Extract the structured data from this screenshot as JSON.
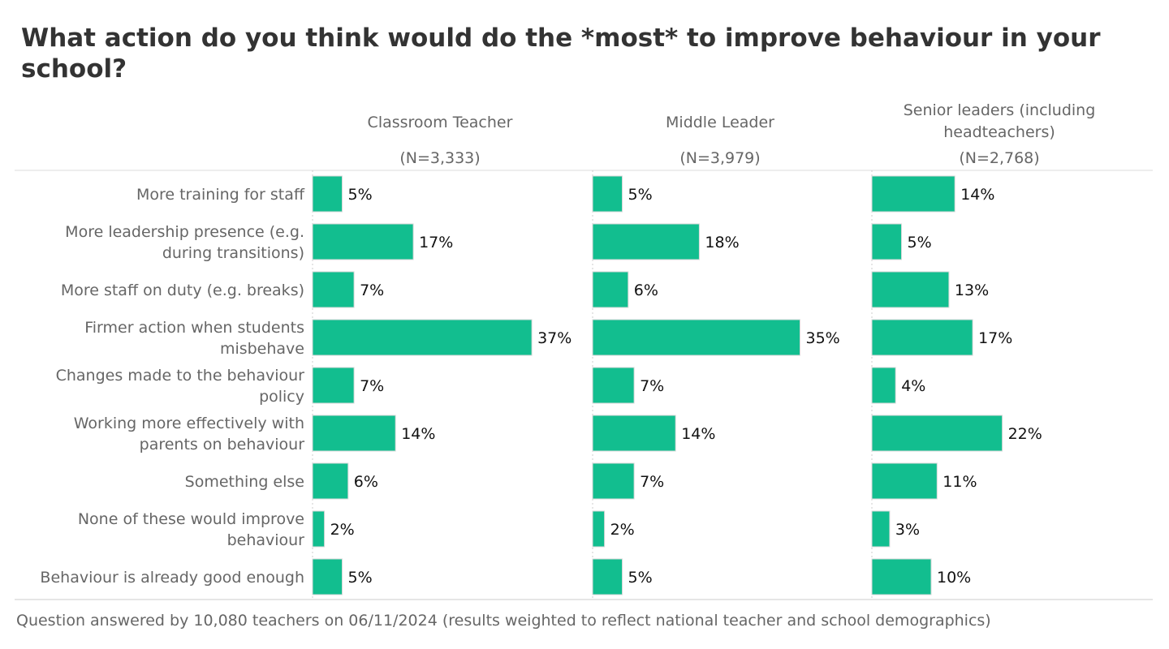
{
  "chart_data": {
    "type": "bar",
    "orientation": "horizontal",
    "title": "What action do you think would do the *most* to improve behaviour in your school?",
    "categories": [
      "More training for staff",
      "More leadership presence (e.g. during transitions)",
      "More staff on duty (e.g. breaks)",
      "Firmer action when students misbehave",
      "Changes made to the behaviour policy",
      "Working more effectively with parents on behaviour",
      "Something else",
      "None of these would improve behaviour",
      "Behaviour is already good enough"
    ],
    "series": [
      {
        "name": "Classroom Teacher",
        "n_label": "(N=3,333)",
        "values": [
          5,
          17,
          7,
          37,
          7,
          14,
          6,
          2,
          5
        ]
      },
      {
        "name": "Middle Leader",
        "n_label": "(N=3,979)",
        "values": [
          5,
          18,
          6,
          35,
          7,
          14,
          7,
          2,
          5
        ]
      },
      {
        "name": "Senior leaders (including headteachers)",
        "n_label": "(N=2,768)",
        "values": [
          14,
          5,
          13,
          17,
          4,
          22,
          11,
          3,
          10
        ]
      }
    ],
    "value_suffix": "%",
    "xlim": [
      0,
      47
    ],
    "grid": false,
    "bar_color": "#12be8f",
    "footnote": "Question answered by 10,080 teachers on 06/11/2024 (results weighted to reflect national teacher and school demographics)"
  }
}
